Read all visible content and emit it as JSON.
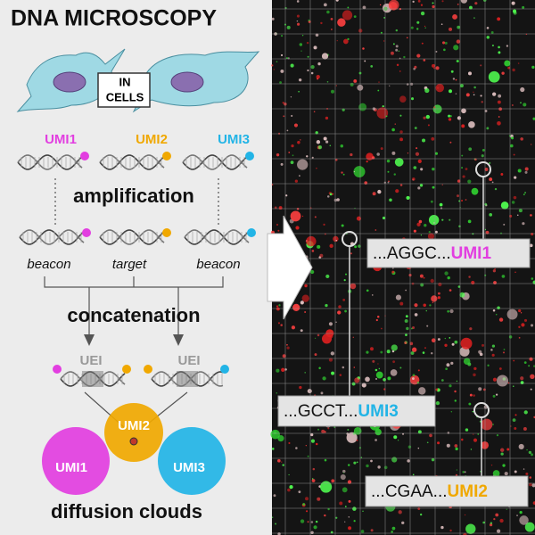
{
  "title": "DNA MICROSCOPY",
  "cells_label": [
    "IN",
    "CELLS"
  ],
  "umis": [
    {
      "name": "UMI1",
      "color": "#e23ee0"
    },
    {
      "name": "UMI2",
      "color": "#f0a800"
    },
    {
      "name": "UMI3",
      "color": "#22b4e6"
    }
  ],
  "steps": [
    "amplification",
    "concatenation",
    "diffusion clouds"
  ],
  "roles": [
    "beacon",
    "target",
    "beacon"
  ],
  "uei": [
    "UEI",
    "UEI"
  ],
  "clouds": [
    "UMI1",
    "UMI2",
    "UMI3"
  ],
  "callouts": [
    {
      "sequence": "...AGGC...",
      "umi": "UMI1"
    },
    {
      "sequence": "...GCCT...",
      "umi": "UMI3"
    },
    {
      "sequence": "...CGAA...",
      "umi": "UMI2"
    }
  ]
}
